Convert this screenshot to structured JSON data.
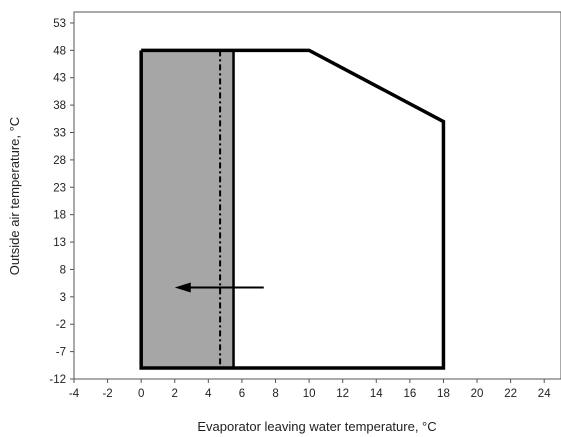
{
  "chart_data": {
    "type": "area",
    "xlabel": "Evaporator leaving water temperature, °C",
    "ylabel": "Outside air temperature, °C",
    "x_ticks": [
      "-4",
      "-2",
      "0",
      "2",
      "4",
      "6",
      "8",
      "10",
      "12",
      "14",
      "16",
      "18",
      "20",
      "22",
      "24"
    ],
    "y_ticks": [
      "-12",
      "-7",
      "-2",
      "3",
      "8",
      "13",
      "18",
      "23",
      "28",
      "33",
      "38",
      "43",
      "48",
      "53"
    ],
    "xlim": [
      -4,
      25
    ],
    "ylim": [
      -12,
      55
    ],
    "grid": false,
    "envelope": {
      "x": [
        0,
        10,
        18,
        18,
        0,
        0
      ],
      "y": [
        48,
        48,
        35,
        -10,
        -10,
        48
      ]
    },
    "shaded_region": {
      "x_range": [
        0,
        5.5
      ],
      "y_range": [
        -10,
        48
      ],
      "color": "#a6a6a6"
    },
    "divider_line": {
      "x": 5.5,
      "y_range": [
        -10,
        48
      ]
    },
    "dashdot_line": {
      "x": 4.7,
      "y_range": [
        -10,
        48
      ]
    },
    "arrow": {
      "from": [
        7.3,
        4.7
      ],
      "to": [
        2,
        4.7
      ]
    },
    "colors": {
      "outline": "#000000",
      "shade": "#a6a6a6",
      "axis": "#555555"
    }
  }
}
